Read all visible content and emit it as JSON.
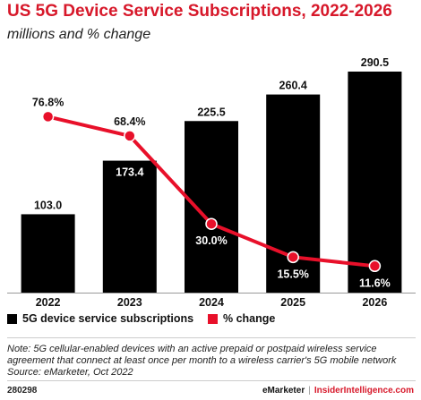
{
  "title": "US 5G Device Service Subscriptions, 2022-2026",
  "subtitle": "millions and % change",
  "chart_data": {
    "type": "bar",
    "categories": [
      "2022",
      "2023",
      "2024",
      "2025",
      "2026"
    ],
    "series": [
      {
        "name": "5G device service subscriptions",
        "type": "bar",
        "values": [
          103.0,
          173.4,
          225.5,
          260.4,
          290.5
        ],
        "labels": [
          "103.0",
          "173.4",
          "225.5",
          "260.4",
          "290.5"
        ],
        "color": "#000000"
      },
      {
        "name": "% change",
        "type": "line",
        "values": [
          76.8,
          68.4,
          30.0,
          15.5,
          11.6
        ],
        "labels": [
          "76.8%",
          "68.4%",
          "30.0%",
          "15.5%",
          "11.6%"
        ],
        "color": "#e8102a"
      }
    ],
    "ylim_bars": [
      0,
      290.5
    ],
    "ylim_line": [
      0,
      100
    ],
    "grid": false,
    "legend_position": "bottom-left"
  },
  "legend": {
    "bars_label": "5G device service subscriptions",
    "line_label": "% change"
  },
  "notes": {
    "line1": "Note: 5G cellular-enabled devices with an active prepaid or postpaid wireless service",
    "line2": "agreement that connect at least once per month to a wireless carrier's 5G mobile network",
    "source": "Source: eMarketer, Oct 2022"
  },
  "footer": {
    "chart_id": "280298",
    "brand_emarketer": "eMarketer",
    "brand_separator": "|",
    "brand_insider": "InsiderIntelligence.com"
  }
}
